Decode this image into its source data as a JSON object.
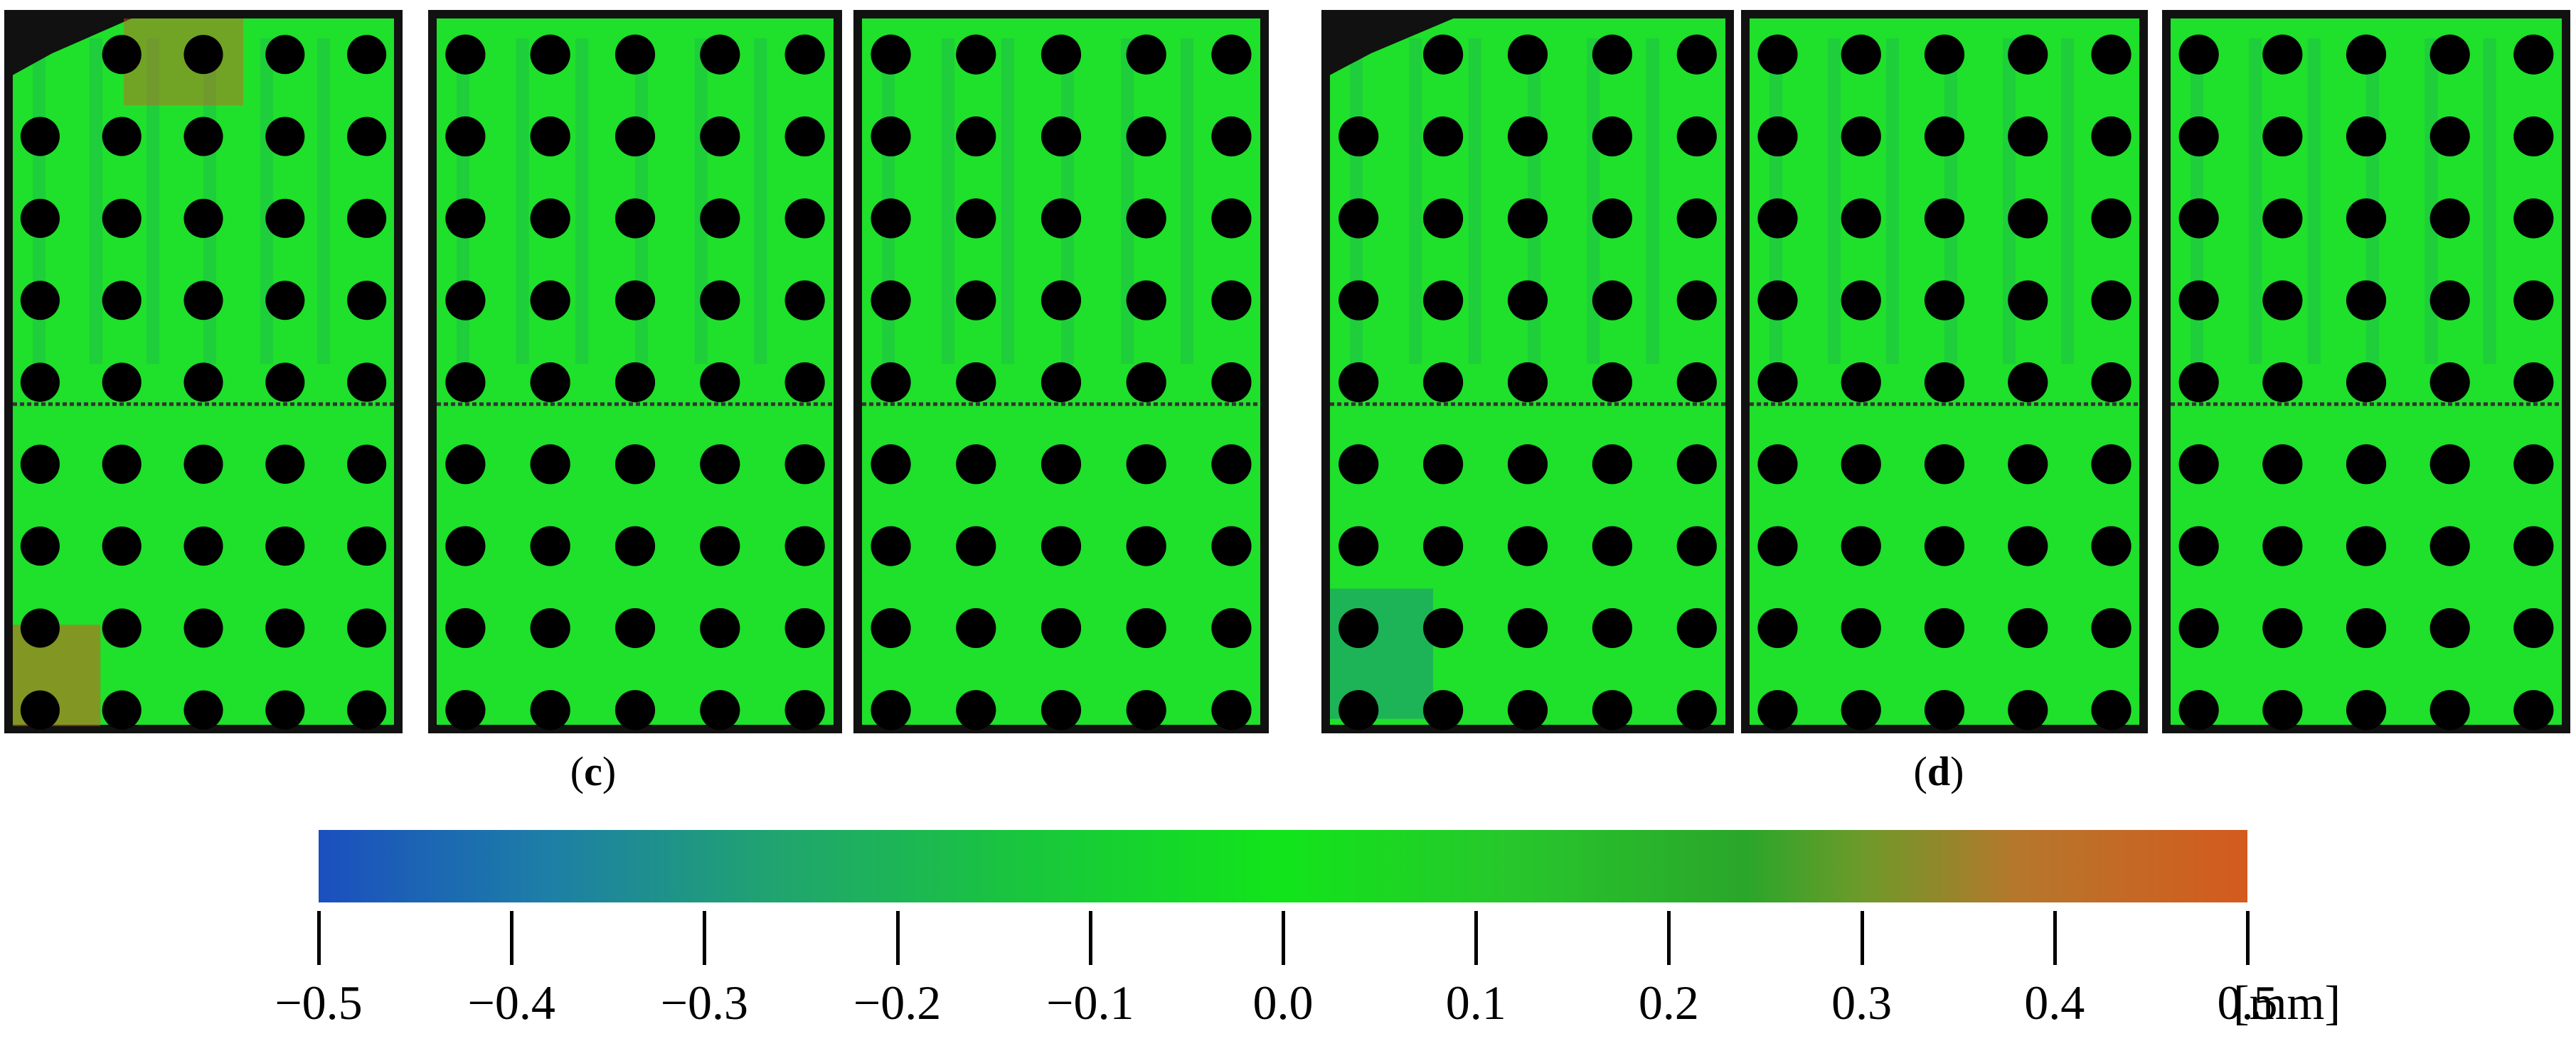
{
  "figure": {
    "captions": [
      {
        "id": "c",
        "text": "c"
      },
      {
        "id": "d",
        "text": "d"
      }
    ],
    "panels": [
      {
        "id": "c-1",
        "group": "c"
      },
      {
        "id": "c-2",
        "group": "c"
      },
      {
        "id": "c-3",
        "group": "c"
      },
      {
        "id": "d-1",
        "group": "d"
      },
      {
        "id": "d-2",
        "group": "d"
      },
      {
        "id": "d-3",
        "group": "d"
      }
    ],
    "hole_grid": {
      "columns": 5,
      "rows": 9
    },
    "colors": {
      "surface_green": "#1fe02a",
      "hole_black": "#000000",
      "deviation_blue": "#1b4fbf",
      "deviation_orange": "#d45a1e"
    }
  },
  "colorbar": {
    "ticks": [
      "−0.5",
      "−0.4",
      "−0.3",
      "−0.2",
      "−0.1",
      "0.0",
      "0.1",
      "0.2",
      "0.3",
      "0.4",
      "0.5"
    ],
    "unit": "[mm]",
    "min": -0.5,
    "max": 0.5,
    "color_low": "#1b4fbf",
    "color_mid": "#11e51a",
    "color_high": "#d45a1e"
  }
}
